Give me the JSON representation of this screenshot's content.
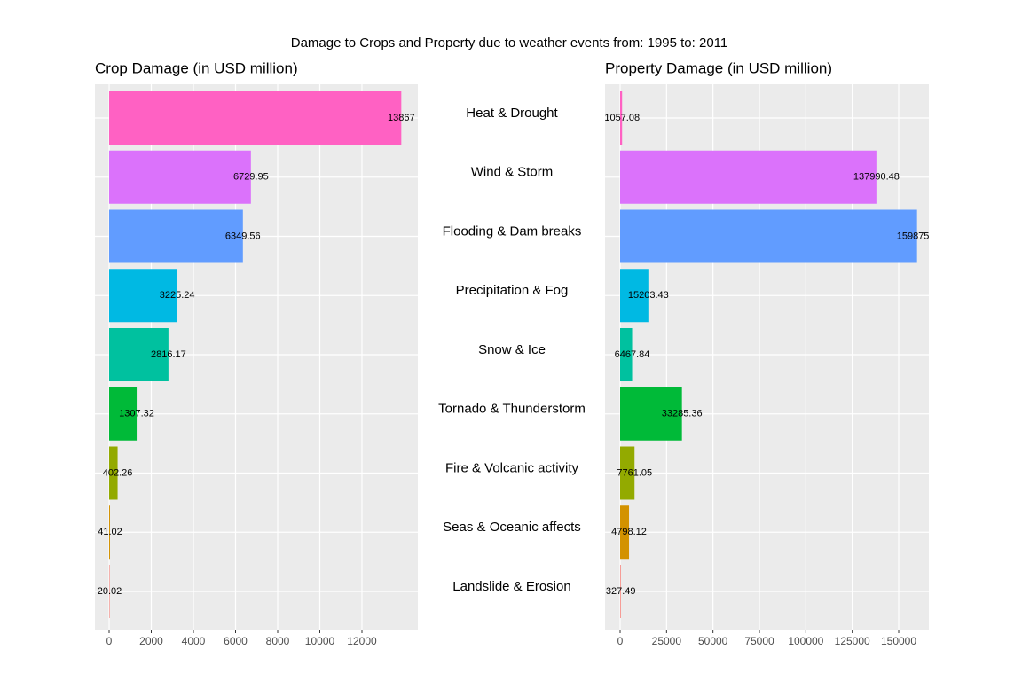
{
  "title": "Damage to Crops and Property due to weather events from: 1995  to: 2011",
  "chart_data": [
    {
      "type": "bar",
      "orientation": "horizontal",
      "title": "Crop Damage (in USD million)",
      "categories": [
        "Heat & Drought",
        "Wind & Storm",
        "Flooding & Dam breaks",
        "Precipitation & Fog",
        "Snow & Ice",
        "Tornado & Thunderstorm",
        "Fire & Volcanic activity",
        "Seas & Oceanic affects",
        "Landslide & Erosion"
      ],
      "values": [
        13867,
        6729.95,
        6349.56,
        3225.24,
        2816.17,
        1307.32,
        402.26,
        41.02,
        20.02
      ],
      "colors": [
        "#FF61C3",
        "#DB72FB",
        "#619CFF",
        "#00B9E3",
        "#00C19F",
        "#00BA38",
        "#93AA00",
        "#D39200",
        "#F8766D"
      ],
      "xlim": [
        -674,
        14653
      ],
      "xticks": [
        0,
        2000,
        4000,
        6000,
        8000,
        10000,
        12000
      ],
      "grid": true
    },
    {
      "type": "bar",
      "orientation": "horizontal",
      "title": "Property Damage (in USD million)",
      "values": [
        1057.08,
        137990.48,
        159875.7,
        15203.43,
        6467.84,
        33285.36,
        7761.05,
        4798.12,
        327.49
      ],
      "colors": [
        "#FF61C3",
        "#DB72FB",
        "#619CFF",
        "#00B9E3",
        "#00C19F",
        "#00BA38",
        "#93AA00",
        "#D39200",
        "#F8766D"
      ],
      "xlim": [
        -8121,
        166240
      ],
      "xticks": [
        0,
        25000,
        50000,
        75000,
        100000,
        125000,
        150000
      ],
      "grid": true
    }
  ]
}
